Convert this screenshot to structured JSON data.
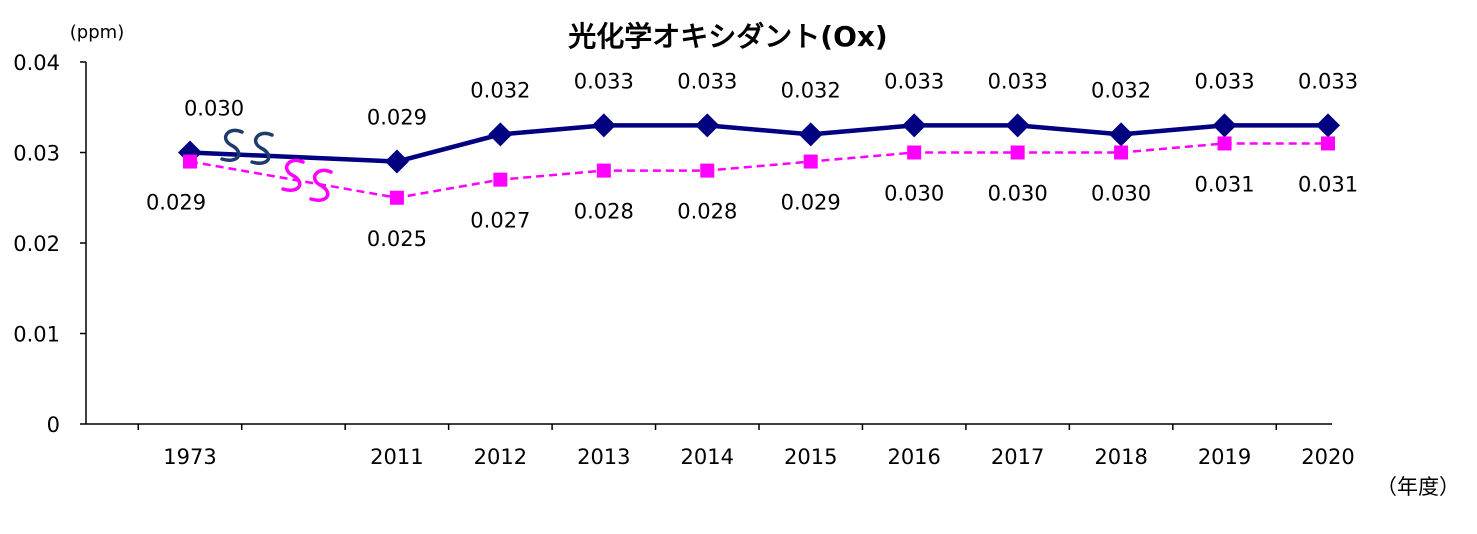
{
  "chart_data": {
    "type": "line",
    "title": "光化学オキシダント(Ox)",
    "ylabel": "(ppm)",
    "xlabel": "（年度）",
    "ylim": [
      0,
      0.04
    ],
    "yticks": [
      "0",
      "0.01",
      "0.02",
      "0.03",
      "0.04"
    ],
    "yticks_values": [
      0,
      0.01,
      0.02,
      0.03,
      0.04
    ],
    "categories": [
      "1973",
      "",
      "2011",
      "2012",
      "2013",
      "2014",
      "2015",
      "2016",
      "2017",
      "2018",
      "2019",
      "2020"
    ],
    "axis_break": true,
    "series": [
      {
        "color": "#000080",
        "marker": "diamond",
        "line": "solid",
        "values": [
          0.03,
          null,
          0.029,
          0.032,
          0.033,
          0.033,
          0.032,
          0.033,
          0.033,
          0.032,
          0.033,
          0.033
        ],
        "labels": [
          "0.030",
          "",
          "0.029",
          "0.032",
          "0.033",
          "0.033",
          "0.032",
          "0.033",
          "0.033",
          "0.032",
          "0.033",
          "0.033"
        ]
      },
      {
        "color": "#ff00ff",
        "marker": "square",
        "line": "dashed",
        "values": [
          0.029,
          null,
          0.025,
          0.027,
          0.028,
          0.028,
          0.029,
          0.03,
          0.03,
          0.03,
          0.031,
          0.031
        ],
        "labels": [
          "0.029",
          "",
          "0.025",
          "0.027",
          "0.028",
          "0.028",
          "0.029",
          "0.030",
          "0.030",
          "0.030",
          "0.031",
          "0.031"
        ]
      }
    ],
    "grid": false,
    "legend": "none"
  }
}
